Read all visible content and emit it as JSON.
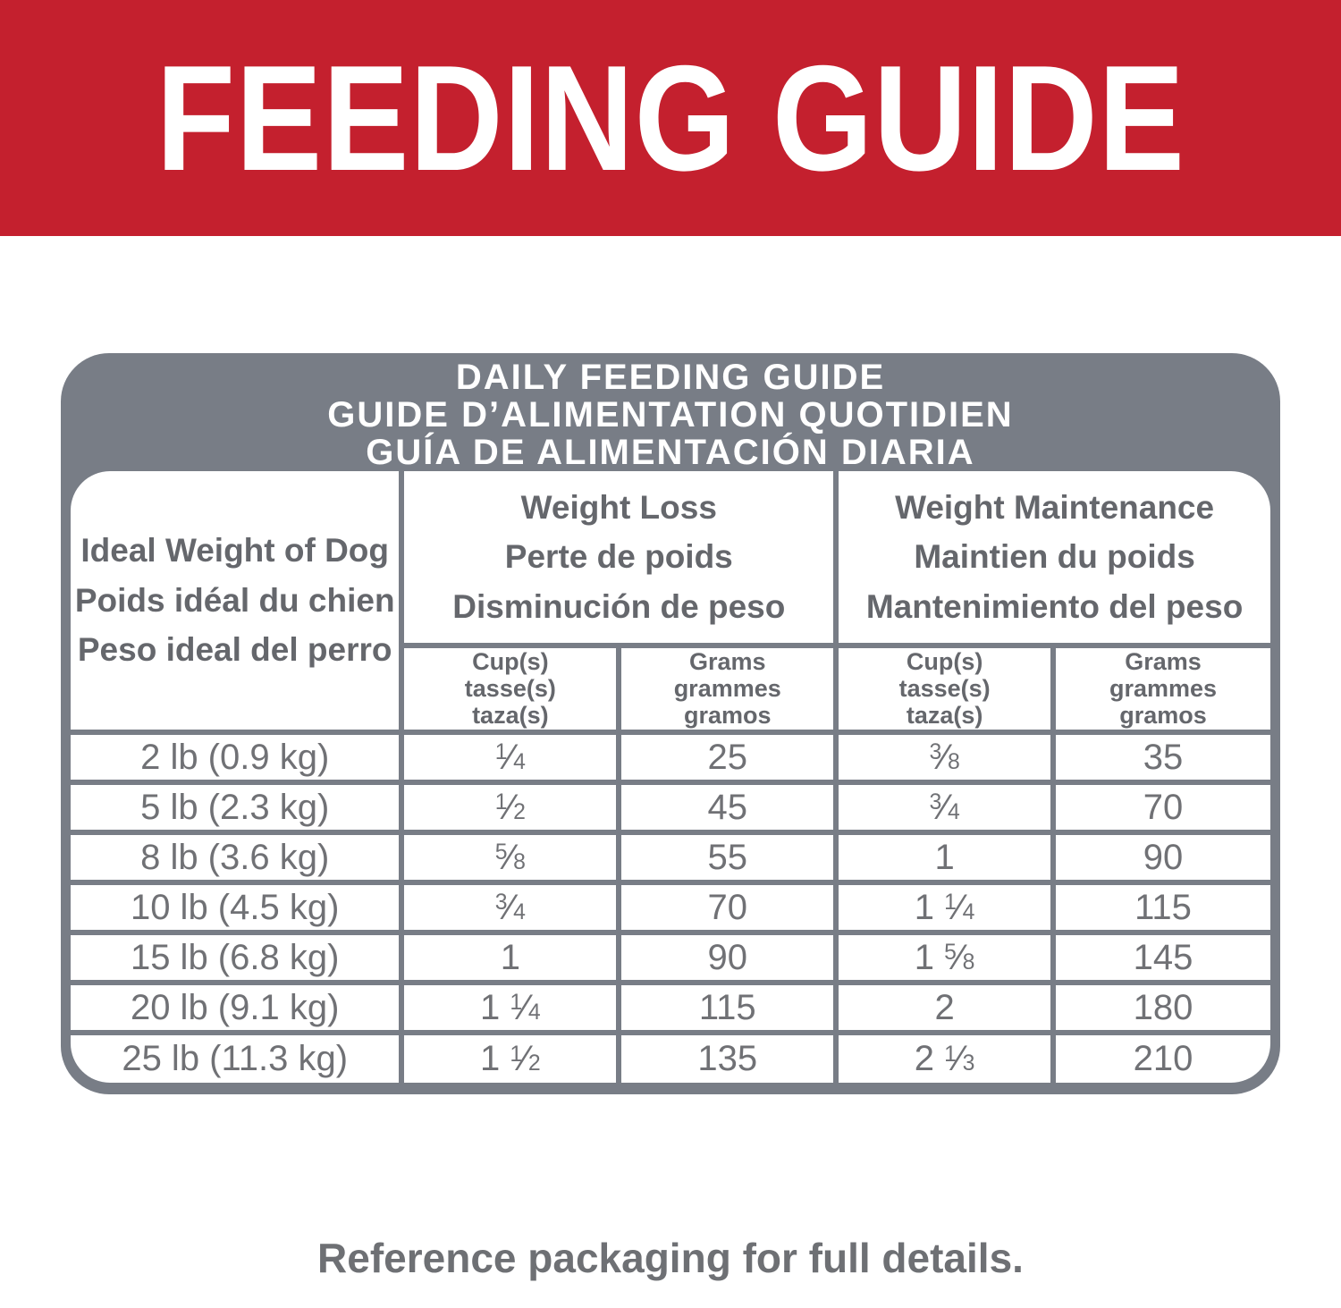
{
  "banner": {
    "title": "FEEDING GUIDE"
  },
  "colors": {
    "banner_red": "#C4202E",
    "table_gray": "#787D86",
    "header_text_gray": "#65676C",
    "data_text_gray": "#707175",
    "white": "#FFFFFF"
  },
  "table": {
    "band_lines": [
      "DAILY FEEDING GUIDE",
      "GUIDE D’ALIMENTATION QUOTIDIEN",
      "GUÍA DE ALIMENTACIÓN DIARIA"
    ],
    "col1_header": {
      "lines": [
        "Ideal Weight of Dog",
        "Poids idéal du chien",
        "Peso ideal del perro"
      ]
    },
    "group_headers": [
      {
        "lines": [
          "Weight Loss",
          "Perte de poids",
          "Disminución de peso"
        ]
      },
      {
        "lines": [
          "Weight Maintenance",
          "Maintien du poids",
          "Mantenimiento del peso"
        ]
      }
    ],
    "subcols": {
      "cups": [
        "Cup(s)",
        "tasse(s)",
        "taza(s)"
      ],
      "grams": [
        "Grams",
        "grammes",
        "gramos"
      ]
    },
    "rows": [
      [
        "2 lb (0.9 kg)",
        "1/4",
        "25",
        "3/8",
        "35"
      ],
      [
        "5 lb (2.3 kg)",
        "1/2",
        "45",
        "3/4",
        "70"
      ],
      [
        "8 lb (3.6 kg)",
        "5/8",
        "55",
        "1",
        "90"
      ],
      [
        "10 lb (4.5 kg)",
        "3/4",
        "70",
        "1 1/4",
        "115"
      ],
      [
        "15 lb (6.8 kg)",
        "1",
        "90",
        "1 5/8",
        "145"
      ],
      [
        "20 lb (9.1 kg)",
        "1 1/4",
        "115",
        "2",
        "180"
      ],
      [
        "25 lb (11.3 kg)",
        "1 1/2",
        "135",
        "2 1/3",
        "210"
      ]
    ]
  },
  "footer": {
    "note": "Reference packaging for full details."
  }
}
